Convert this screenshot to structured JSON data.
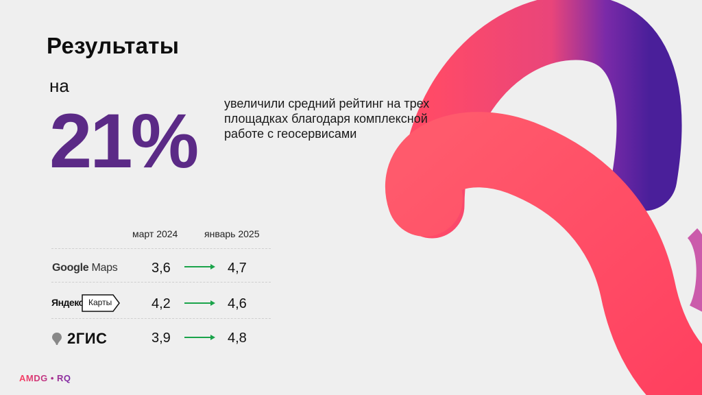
{
  "title": "Результаты",
  "stat": {
    "prefix": "на",
    "value": "21%",
    "description": "увеличили средний рейтинг на трех площадках благодаря комплексной работе с геосервисами"
  },
  "table": {
    "columns": [
      "март 2024",
      "январь 2025"
    ],
    "rows": [
      {
        "platform": "Google Maps",
        "from": "3,6",
        "to": "4,7"
      },
      {
        "platform": "Яндекс Карты",
        "from": "4,2",
        "to": "4,6"
      },
      {
        "platform": "2ГИС",
        "from": "3,9",
        "to": "4,8"
      }
    ]
  },
  "logos": {
    "google_a": "Google",
    "google_b": "Maps",
    "yandex": "Яндекс",
    "karty": "Карты",
    "twogis": "2ГИС"
  },
  "brand": "AMDG • RQ",
  "colors": {
    "accent": "#5b2a86",
    "arrow": "#1aa34a",
    "ribbon": "#ff4d6a"
  }
}
